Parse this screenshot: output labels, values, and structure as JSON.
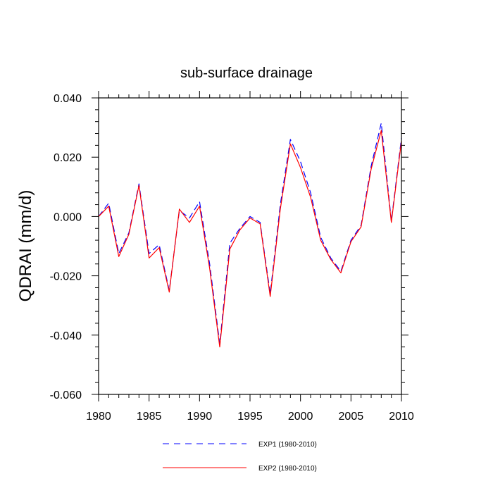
{
  "chart_data": {
    "type": "line",
    "title": "sub-surface drainage",
    "xlabel": "",
    "ylabel": "QDRAI  (mm/d)",
    "xlim": [
      1980,
      2010
    ],
    "ylim": [
      -0.06,
      0.04
    ],
    "x_ticks": [
      1980,
      1985,
      1990,
      1995,
      2000,
      2005,
      2010
    ],
    "x_tick_labels": [
      "1980",
      "1985",
      "1990",
      "1995",
      "2000",
      "2005",
      "2010"
    ],
    "y_ticks": [
      -0.06,
      -0.04,
      -0.02,
      0.0,
      0.02,
      0.04
    ],
    "y_tick_labels": [
      "-0.060",
      "-0.040",
      "-0.020",
      "0.000",
      "0.020",
      "0.040"
    ],
    "grid": false,
    "legend_position": "bottom",
    "x": [
      1980,
      1981,
      1982,
      1983,
      1984,
      1985,
      1986,
      1987,
      1988,
      1989,
      1990,
      1991,
      1992,
      1993,
      1994,
      1995,
      1996,
      1997,
      1998,
      1999,
      2000,
      2001,
      2002,
      2003,
      2004,
      2005,
      2006,
      2007,
      2008,
      2009,
      2010
    ],
    "series": [
      {
        "name": "EXP1 (1980-2010)",
        "color": "#0000ff",
        "dash": "dashed",
        "values": [
          0.0,
          0.0045,
          -0.0125,
          -0.0055,
          0.011,
          -0.0125,
          -0.0095,
          -0.025,
          0.002,
          -0.0005,
          0.005,
          -0.016,
          -0.043,
          -0.009,
          -0.004,
          0.0,
          -0.002,
          -0.026,
          0.004,
          0.026,
          0.0185,
          0.008,
          -0.007,
          -0.014,
          -0.0185,
          -0.008,
          -0.003,
          0.017,
          0.0315,
          -0.0015,
          0.0265
        ]
      },
      {
        "name": "EXP2 (1980-2010)",
        "color": "#ff0000",
        "dash": "solid",
        "values": [
          0.0,
          0.0035,
          -0.0135,
          -0.006,
          0.0105,
          -0.014,
          -0.0105,
          -0.0255,
          0.0025,
          -0.002,
          0.0035,
          -0.0175,
          -0.044,
          -0.011,
          -0.0045,
          -0.0005,
          -0.0025,
          -0.027,
          0.0025,
          0.0245,
          0.0165,
          0.0065,
          -0.008,
          -0.0145,
          -0.019,
          -0.0085,
          -0.0035,
          0.016,
          0.029,
          -0.002,
          0.0255
        ]
      }
    ]
  }
}
